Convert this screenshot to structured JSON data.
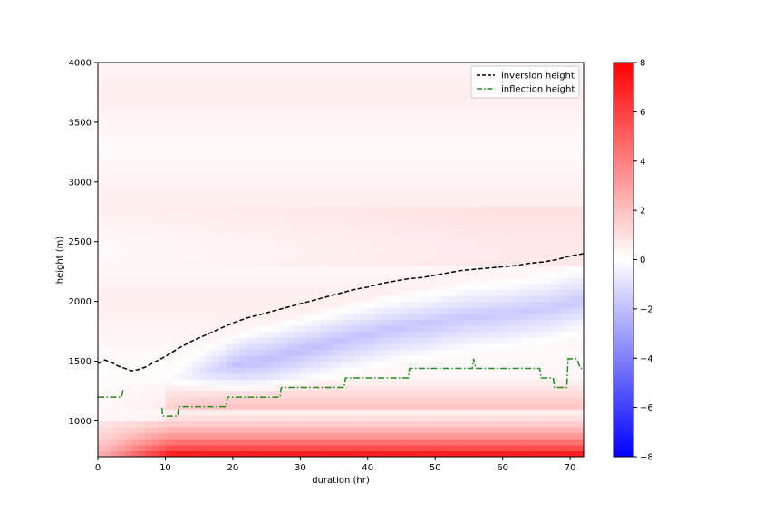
{
  "chart_data": {
    "type": "heatmap",
    "xlabel": "duration (hr)",
    "ylabel": "height (m)",
    "xlim": [
      0,
      72
    ],
    "ylim": [
      700,
      4000
    ],
    "xticks": [
      0,
      10,
      20,
      30,
      40,
      50,
      60,
      70
    ],
    "yticks": [
      1000,
      1500,
      2000,
      2500,
      3000,
      3500,
      4000
    ],
    "grid": false,
    "legend_position": "top-right",
    "colorbar": {
      "min": -8,
      "max": 8,
      "ticks": [
        -8,
        -6,
        -4,
        -2,
        0,
        2,
        4,
        6,
        8
      ],
      "colors": [
        "#0000ff",
        "#ffffff",
        "#ff0000"
      ]
    },
    "series": [
      {
        "name": "inversion height",
        "style": "dashed",
        "color": "#000000",
        "x": [
          0,
          1,
          2,
          3,
          4,
          5,
          6,
          7,
          8,
          10,
          12,
          14,
          16,
          18,
          20,
          22,
          24,
          26,
          28,
          30,
          32,
          34,
          36,
          38,
          40,
          42,
          44,
          46,
          48,
          50,
          52,
          54,
          56,
          58,
          60,
          62,
          64,
          66,
          68,
          70,
          72
        ],
        "y": [
          1480,
          1510,
          1490,
          1460,
          1440,
          1420,
          1430,
          1450,
          1480,
          1540,
          1610,
          1670,
          1720,
          1770,
          1820,
          1860,
          1890,
          1920,
          1950,
          1980,
          2010,
          2040,
          2070,
          2100,
          2120,
          2150,
          2170,
          2190,
          2200,
          2220,
          2240,
          2260,
          2270,
          2280,
          2290,
          2300,
          2320,
          2330,
          2350,
          2380,
          2400
        ]
      },
      {
        "name": "inflection height",
        "style": "dashdot",
        "color": "#228b22",
        "segments": [
          {
            "x": [
              0,
              3.5,
              3.8
            ],
            "y": [
              1200,
              1200,
              1270
            ]
          },
          {
            "x": [
              9.5,
              9.6,
              11.8,
              12.0,
              19.0,
              19.2,
              27.0,
              27.2,
              36.5,
              36.7,
              46.0,
              46.2,
              48.0,
              48.1,
              55.5,
              55.7,
              56.0,
              65.5,
              65.7,
              67.5,
              67.7,
              69.5,
              69.7,
              71.0,
              71.5,
              72.0
            ],
            "y": [
              1110,
              1040,
              1040,
              1120,
              1120,
              1200,
              1200,
              1280,
              1280,
              1360,
              1360,
              1440,
              1440,
              1440,
              1440,
              1520,
              1440,
              1440,
              1360,
              1360,
              1280,
              1280,
              1520,
              1520,
              1440,
              1440
            ]
          }
        ]
      }
    ]
  }
}
